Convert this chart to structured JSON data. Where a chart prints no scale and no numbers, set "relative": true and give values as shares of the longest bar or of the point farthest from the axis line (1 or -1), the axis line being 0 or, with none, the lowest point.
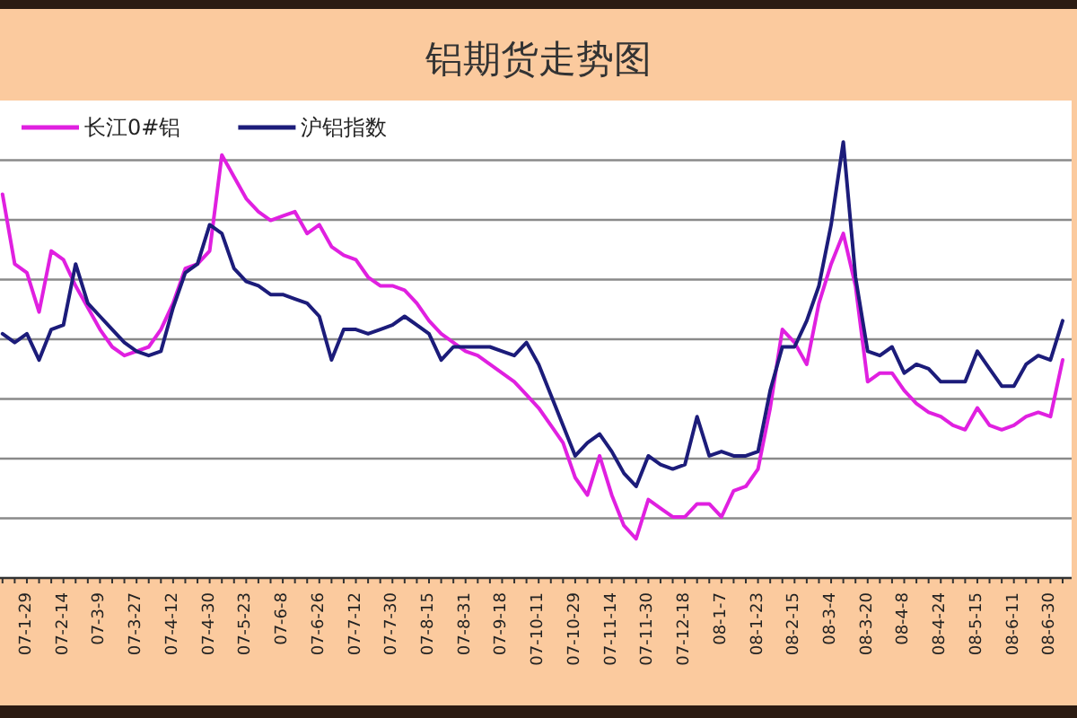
{
  "chart_data": {
    "type": "line",
    "title": "铝期货走势图",
    "relative": true,
    "grid": "y",
    "legend": "top left",
    "categories": [
      null,
      null,
      "07-1-29",
      null,
      null,
      "07-2-14",
      null,
      null,
      "07-3-9",
      null,
      null,
      "07-3-27",
      null,
      null,
      "07-4-12",
      null,
      null,
      "07-4-30",
      null,
      null,
      "07-5-23",
      null,
      null,
      "07-6-8",
      null,
      null,
      "07-6-26",
      null,
      null,
      "07-7-12",
      null,
      null,
      "07-7-30",
      null,
      null,
      "07-8-15",
      null,
      null,
      "07-8-31",
      null,
      null,
      "07-9-18",
      null,
      null,
      "07-10-11",
      null,
      null,
      "07-10-29",
      null,
      null,
      "07-11-14",
      null,
      null,
      "07-11-30",
      null,
      null,
      "07-12-18",
      null,
      null,
      "08-1-7",
      null,
      null,
      "08-1-23",
      null,
      null,
      "08-2-15",
      null,
      null,
      "08-3-4",
      null,
      null,
      "08-3-20",
      null,
      null,
      "08-4-8",
      null,
      null,
      "08-4-24",
      null,
      null,
      "08-5-15",
      null,
      null,
      "08-6-11",
      null,
      null,
      "08-6-30",
      null
    ],
    "series": [
      {
        "name": "长江0#铝",
        "color": "#e020e0",
        "values": [
          0.88,
          0.72,
          0.7,
          0.61,
          0.75,
          0.73,
          0.67,
          0.62,
          0.57,
          0.53,
          0.51,
          0.52,
          0.53,
          0.57,
          0.63,
          0.71,
          0.72,
          0.75,
          0.97,
          0.92,
          0.87,
          0.84,
          0.82,
          0.83,
          0.84,
          0.79,
          0.81,
          0.76,
          0.74,
          0.73,
          0.69,
          0.67,
          0.67,
          0.66,
          0.63,
          0.59,
          0.56,
          0.54,
          0.52,
          0.51,
          0.49,
          0.47,
          0.45,
          0.42,
          0.39,
          0.35,
          0.31,
          0.23,
          0.19,
          0.28,
          0.19,
          0.12,
          0.09,
          0.18,
          0.16,
          0.14,
          0.14,
          0.17,
          0.17,
          0.14,
          0.2,
          0.21,
          0.25,
          0.39,
          0.57,
          0.54,
          0.49,
          0.63,
          0.72,
          0.79,
          0.67,
          0.45,
          0.47,
          0.47,
          0.43,
          0.4,
          0.38,
          0.37,
          0.35,
          0.34,
          0.39,
          0.35,
          0.34,
          0.35,
          0.37,
          0.38,
          0.37,
          0.5
        ]
      },
      {
        "name": "沪铝指数",
        "color": "#1c1c7a",
        "values": [
          0.56,
          0.54,
          0.56,
          0.5,
          0.57,
          0.58,
          0.72,
          0.63,
          0.6,
          0.57,
          0.54,
          0.52,
          0.51,
          0.52,
          0.62,
          0.7,
          0.72,
          0.81,
          0.79,
          0.71,
          0.68,
          0.67,
          0.65,
          0.65,
          0.64,
          0.63,
          0.6,
          0.5,
          0.57,
          0.57,
          0.56,
          0.57,
          0.58,
          0.6,
          0.58,
          0.56,
          0.5,
          0.53,
          0.53,
          0.53,
          0.53,
          0.52,
          0.51,
          0.54,
          0.49,
          0.42,
          0.35,
          0.28,
          0.31,
          0.33,
          0.29,
          0.24,
          0.21,
          0.28,
          0.26,
          0.25,
          0.26,
          0.37,
          0.28,
          0.29,
          0.28,
          0.28,
          0.29,
          0.43,
          0.53,
          0.53,
          0.59,
          0.67,
          0.81,
          1.0,
          0.69,
          0.52,
          0.51,
          0.53,
          0.47,
          0.49,
          0.48,
          0.45,
          0.45,
          0.45,
          0.52,
          0.48,
          0.44,
          0.44,
          0.49,
          0.51,
          0.5,
          0.59
        ]
      }
    ]
  }
}
